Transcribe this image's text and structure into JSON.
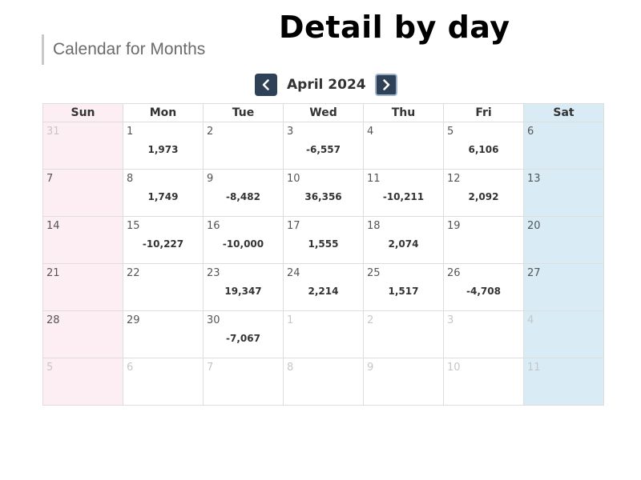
{
  "overlay_title": "Detail by day",
  "page_title": "Calendar for Months",
  "nav": {
    "month_label": "April 2024",
    "prev_icon": "chevron-left-icon",
    "next_icon": "chevron-right-icon"
  },
  "colors": {
    "nav_button": "#2e4157",
    "sunday_bg": "#fdeef3",
    "saturday_bg": "#d9ecf6",
    "out_of_month_text": "#c6c6c6"
  },
  "weekdays": [
    "Sun",
    "Mon",
    "Tue",
    "Wed",
    "Thu",
    "Fri",
    "Sat"
  ],
  "weeks": [
    [
      {
        "day": "31",
        "value": "",
        "current": false
      },
      {
        "day": "1",
        "value": "1,973",
        "current": true
      },
      {
        "day": "2",
        "value": "",
        "current": true
      },
      {
        "day": "3",
        "value": "-6,557",
        "current": true
      },
      {
        "day": "4",
        "value": "",
        "current": true
      },
      {
        "day": "5",
        "value": "6,106",
        "current": true
      },
      {
        "day": "6",
        "value": "",
        "current": true
      }
    ],
    [
      {
        "day": "7",
        "value": "",
        "current": true
      },
      {
        "day": "8",
        "value": "1,749",
        "current": true
      },
      {
        "day": "9",
        "value": "-8,482",
        "current": true
      },
      {
        "day": "10",
        "value": "36,356",
        "current": true
      },
      {
        "day": "11",
        "value": "-10,211",
        "current": true
      },
      {
        "day": "12",
        "value": "2,092",
        "current": true
      },
      {
        "day": "13",
        "value": "",
        "current": true
      }
    ],
    [
      {
        "day": "14",
        "value": "",
        "current": true
      },
      {
        "day": "15",
        "value": "-10,227",
        "current": true
      },
      {
        "day": "16",
        "value": "-10,000",
        "current": true
      },
      {
        "day": "17",
        "value": "1,555",
        "current": true
      },
      {
        "day": "18",
        "value": "2,074",
        "current": true
      },
      {
        "day": "19",
        "value": "",
        "current": true
      },
      {
        "day": "20",
        "value": "",
        "current": true
      }
    ],
    [
      {
        "day": "21",
        "value": "",
        "current": true
      },
      {
        "day": "22",
        "value": "",
        "current": true
      },
      {
        "day": "23",
        "value": "19,347",
        "current": true
      },
      {
        "day": "24",
        "value": "2,214",
        "current": true
      },
      {
        "day": "25",
        "value": "1,517",
        "current": true
      },
      {
        "day": "26",
        "value": "-4,708",
        "current": true
      },
      {
        "day": "27",
        "value": "",
        "current": true
      }
    ],
    [
      {
        "day": "28",
        "value": "",
        "current": true
      },
      {
        "day": "29",
        "value": "",
        "current": true
      },
      {
        "day": "30",
        "value": "-7,067",
        "current": true
      },
      {
        "day": "1",
        "value": "",
        "current": false
      },
      {
        "day": "2",
        "value": "",
        "current": false
      },
      {
        "day": "3",
        "value": "",
        "current": false
      },
      {
        "day": "4",
        "value": "",
        "current": false
      }
    ],
    [
      {
        "day": "5",
        "value": "",
        "current": false
      },
      {
        "day": "6",
        "value": "",
        "current": false
      },
      {
        "day": "7",
        "value": "",
        "current": false
      },
      {
        "day": "8",
        "value": "",
        "current": false
      },
      {
        "day": "9",
        "value": "",
        "current": false
      },
      {
        "day": "10",
        "value": "",
        "current": false
      },
      {
        "day": "11",
        "value": "",
        "current": false
      }
    ]
  ]
}
